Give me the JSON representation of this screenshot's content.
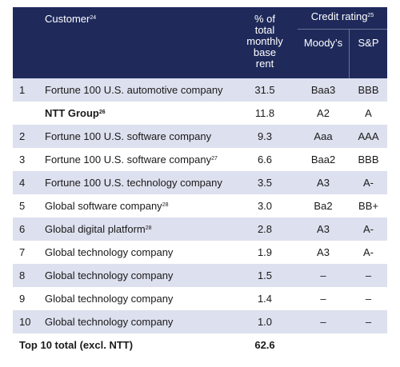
{
  "header": {
    "customer": "Customer",
    "customer_note": "24",
    "pct_line1": "% of",
    "pct_line2": "total",
    "pct_line3": "monthly",
    "pct_line4": "base",
    "pct_line5": "rent",
    "credit_rating": "Credit rating",
    "credit_note": "25",
    "moodys": "Moody’s",
    "sp": "S&P"
  },
  "rows": [
    {
      "rank": "1",
      "name": "Fortune 100 U.S. automotive company",
      "note": "",
      "pct": "31.5",
      "moodys": "Baa3",
      "sp": "BBB",
      "bold": false
    },
    {
      "rank": "",
      "name": "NTT Group",
      "note": "26",
      "pct": "11.8",
      "moodys": "A2",
      "sp": "A",
      "bold": true
    },
    {
      "rank": "2",
      "name": "Fortune 100 U.S. software company",
      "note": "",
      "pct": "9.3",
      "moodys": "Aaa",
      "sp": "AAA",
      "bold": false
    },
    {
      "rank": "3",
      "name": "Fortune 100 U.S. software company",
      "note": "27",
      "pct": "6.6",
      "moodys": "Baa2",
      "sp": "BBB",
      "bold": false
    },
    {
      "rank": "4",
      "name": "Fortune 100 U.S. technology company",
      "note": "",
      "pct": "3.5",
      "moodys": "A3",
      "sp": "A-",
      "bold": false
    },
    {
      "rank": "5",
      "name": "Global software company",
      "note": "28",
      "pct": "3.0",
      "moodys": "Ba2",
      "sp": "BB+",
      "bold": false
    },
    {
      "rank": "6",
      "name": "Global digital platform",
      "note": "28",
      "pct": "2.8",
      "moodys": "A3",
      "sp": "A-",
      "bold": false
    },
    {
      "rank": "7",
      "name": "Global technology company",
      "note": "",
      "pct": "1.9",
      "moodys": "A3",
      "sp": "A-",
      "bold": false
    },
    {
      "rank": "8",
      "name": "Global technology company",
      "note": "",
      "pct": "1.5",
      "moodys": "–",
      "sp": "–",
      "bold": false
    },
    {
      "rank": "9",
      "name": "Global technology company",
      "note": "",
      "pct": "1.4",
      "moodys": "–",
      "sp": "–",
      "bold": false
    },
    {
      "rank": "10",
      "name": "Global technology company",
      "note": "",
      "pct": "1.0",
      "moodys": "–",
      "sp": "–",
      "bold": false
    }
  ],
  "total": {
    "label": "Top 10 total (excl. NTT)",
    "value": "62.6"
  }
}
